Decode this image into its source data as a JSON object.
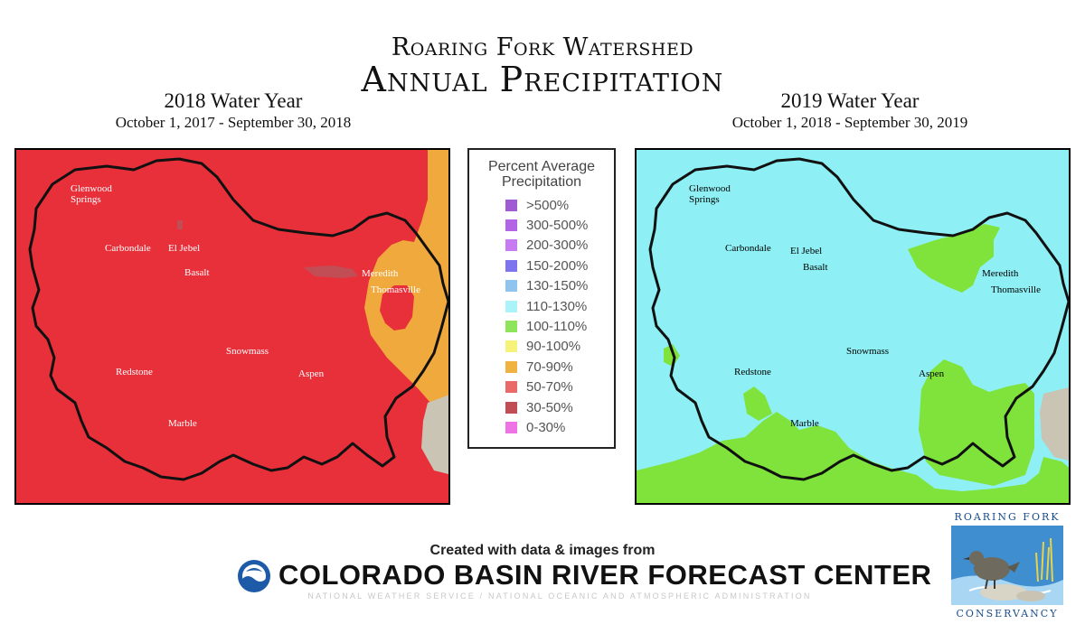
{
  "title": {
    "line1": "Roaring Fork Watershed",
    "line2": "Annual Precipitation"
  },
  "maps": {
    "left": {
      "year": "2018 Water Year",
      "dates": "October 1, 2017 - September 30, 2018"
    },
    "right": {
      "year": "2019 Water Year",
      "dates": "October 1, 2018 - September 30, 2019"
    }
  },
  "towns": {
    "glenwood": "Glenwood\nSprings",
    "carbondale": "Carbondale",
    "el_jebel": "El Jebel",
    "basalt": "Basalt",
    "meredith": "Meredith",
    "thomasville": "Thomasville",
    "snowmass": "Snowmass",
    "redstone": "Redstone",
    "aspen": "Aspen",
    "marble": "Marble"
  },
  "legend": {
    "title": "Percent Average Precipitation",
    "items": [
      {
        "label": ">500%",
        "color": "#a05ad2"
      },
      {
        "label": "300-500%",
        "color": "#b266e6"
      },
      {
        "label": "200-300%",
        "color": "#c77af2"
      },
      {
        "label": "150-200%",
        "color": "#7d74ee"
      },
      {
        "label": "130-150%",
        "color": "#8fc3f0"
      },
      {
        "label": "110-130%",
        "color": "#aaf3f8"
      },
      {
        "label": "100-110%",
        "color": "#8ee45a"
      },
      {
        "label": "90-100%",
        "color": "#f5f37a"
      },
      {
        "label": "70-90%",
        "color": "#f0b341"
      },
      {
        "label": "50-70%",
        "color": "#ea6a6a"
      },
      {
        "label": "30-50%",
        "color": "#c14d55"
      },
      {
        "label": "0-30%",
        "color": "#ee74e6"
      }
    ]
  },
  "credit": {
    "line": "Created with data & images from",
    "org": "COLORADO BASIN RIVER FORECAST CENTER",
    "sub": "NATIONAL WEATHER SERVICE / NATIONAL OCEANIC AND ATMOSPHERIC ADMINISTRATION"
  },
  "logo": {
    "top": "ROARING FORK",
    "bottom": "CONSERVANCY"
  },
  "colors": {
    "left_fill": "#e8303a",
    "left_orange": "#f0a93c",
    "right_fill": "#8ef0f4",
    "right_green": "#7fe33c",
    "boundary": "#111111"
  }
}
